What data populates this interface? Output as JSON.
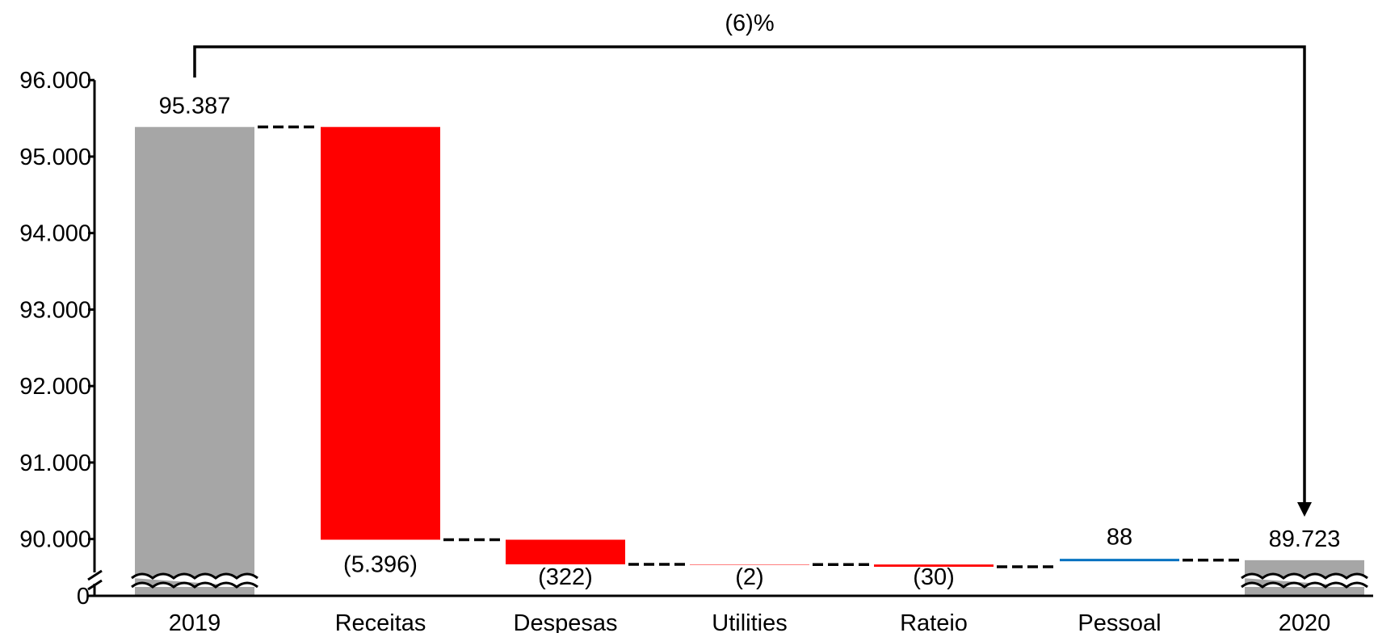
{
  "chart_data": {
    "type": "bar",
    "subtype": "waterfall",
    "categories": [
      "2019",
      "Receitas",
      "Despesas",
      "Utilities",
      "Rateio",
      "Pessoal",
      "2020"
    ],
    "series": [
      {
        "values": [
          95387,
          -5396,
          -322,
          -2,
          -30,
          88,
          89723
        ]
      }
    ],
    "kinds": [
      "total",
      "delta",
      "delta",
      "delta",
      "delta",
      "delta",
      "total"
    ],
    "data_labels": [
      "95.387",
      "(5.396)",
      "(322)",
      "(2)",
      "(30)",
      "88",
      "89.723"
    ],
    "y_ticks": [
      {
        "value": 96000,
        "label": "96.000"
      },
      {
        "value": 95000,
        "label": "95.000"
      },
      {
        "value": 94000,
        "label": "94.000"
      },
      {
        "value": 93000,
        "label": "93.000"
      },
      {
        "value": 92000,
        "label": "92.000"
      },
      {
        "value": 91000,
        "label": "91.000"
      },
      {
        "value": 90000,
        "label": "90.000"
      }
    ],
    "y_zero_label": "0",
    "ylim": [
      89600,
      96000
    ],
    "axis_break": true,
    "change_annotation": "(6)%",
    "grid": false,
    "legend": "none",
    "colors": {
      "total": "#a6a6a6",
      "decrease": "#ff0000",
      "increase": "#0070c0",
      "connector": "#000000",
      "axis": "#000000"
    }
  }
}
